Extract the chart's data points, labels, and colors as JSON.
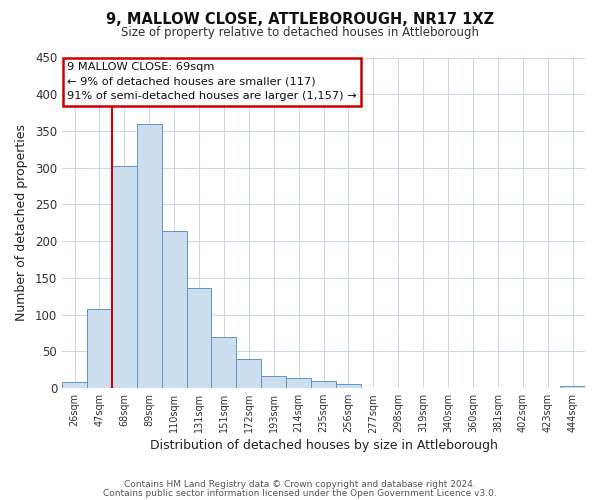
{
  "title": "9, MALLOW CLOSE, ATTLEBOROUGH, NR17 1XZ",
  "subtitle": "Size of property relative to detached houses in Attleborough",
  "xlabel": "Distribution of detached houses by size in Attleborough",
  "ylabel": "Number of detached properties",
  "bar_labels": [
    "26sqm",
    "47sqm",
    "68sqm",
    "89sqm",
    "110sqm",
    "131sqm",
    "151sqm",
    "172sqm",
    "193sqm",
    "214sqm",
    "235sqm",
    "256sqm",
    "277sqm",
    "298sqm",
    "319sqm",
    "340sqm",
    "360sqm",
    "381sqm",
    "402sqm",
    "423sqm",
    "444sqm"
  ],
  "bar_values": [
    9,
    108,
    302,
    360,
    214,
    137,
    70,
    40,
    16,
    14,
    10,
    6,
    0,
    0,
    0,
    0,
    0,
    0,
    0,
    0,
    3
  ],
  "bar_color": "#ccdded",
  "bar_edge_color": "#5b96c8",
  "vline_color": "#cc0000",
  "ylim": [
    0,
    450
  ],
  "yticks": [
    0,
    50,
    100,
    150,
    200,
    250,
    300,
    350,
    400,
    450
  ],
  "annotation_title": "9 MALLOW CLOSE: 69sqm",
  "annotation_line1": "← 9% of detached houses are smaller (117)",
  "annotation_line2": "91% of semi-detached houses are larger (1,157) →",
  "annotation_box_color": "#cc0000",
  "footer_line1": "Contains HM Land Registry data © Crown copyright and database right 2024.",
  "footer_line2": "Contains public sector information licensed under the Open Government Licence v3.0.",
  "background_color": "#ffffff",
  "grid_color": "#c8d8ea"
}
